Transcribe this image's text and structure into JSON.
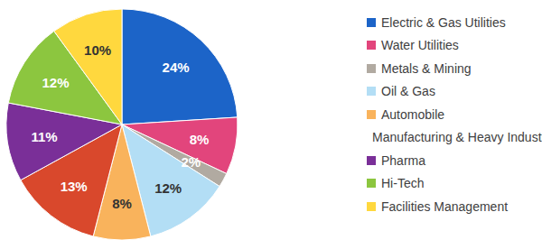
{
  "chart_data": {
    "type": "pie",
    "categories": [
      "Electric & Gas Utilities",
      "Water Utilities",
      "Metals & Mining",
      "Oil & Gas",
      "Automobile",
      "Manufacturing & Heavy Industries",
      "Pharma",
      "Hi-Tech",
      "Facilities Management"
    ],
    "values": [
      24,
      8,
      2,
      12,
      8,
      13,
      11,
      12,
      10
    ],
    "value_labels": [
      "24%",
      "8%",
      "2%",
      "12%",
      "8%",
      "13%",
      "11%",
      "12%",
      "10%"
    ],
    "colors": [
      "#1c64c8",
      "#e2457c",
      "#b1aaa1",
      "#b3def5",
      "#f9b35c",
      "#d9482c",
      "#7a2f98",
      "#8cc63f",
      "#ffd83e"
    ],
    "data_labels": true,
    "legend": "right"
  }
}
